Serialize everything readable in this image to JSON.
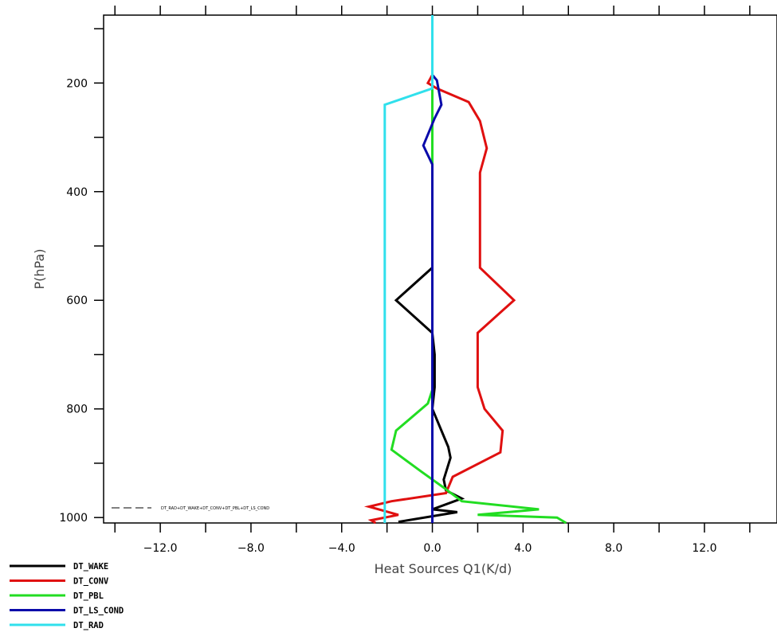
{
  "chart_data": {
    "type": "line",
    "xlabel": "Heat Sources Q1(K/d)",
    "ylabel": "P(hPa)",
    "xlim": [
      -14.5,
      15.2
    ],
    "ylim": [
      1010,
      75
    ],
    "x_ticks": [
      -12.0,
      -8.0,
      -4.0,
      0.0,
      4.0,
      8.0,
      12.0
    ],
    "x_tick_labels": [
      "−12.0",
      "−8.0",
      "−4.0",
      "0.0",
      "4.0",
      "8.0",
      "12.0"
    ],
    "x_minor_ticks": [
      -14,
      -10,
      -6,
      -2,
      2,
      6,
      10,
      14
    ],
    "y_ticks": [
      200,
      400,
      600,
      800,
      1000
    ],
    "y_tick_labels": [
      "200",
      "400",
      "600",
      "800",
      "1000"
    ],
    "y_minor_ticks": [
      100,
      300,
      500,
      700,
      900
    ],
    "legend_position": "bottom-left, below plot",
    "inline_label": "DT_RAD+DT_WAKE+DT_CONV+DT_PBL+DT_LS_COND",
    "series": [
      {
        "name": "DT_WAKE",
        "color": "#000000",
        "points": [
          [
            0,
            75
          ],
          [
            0,
            540
          ],
          [
            -1.6,
            600
          ],
          [
            0,
            660
          ],
          [
            0.1,
            700
          ],
          [
            0.1,
            760
          ],
          [
            0,
            800
          ],
          [
            0.7,
            870
          ],
          [
            0.8,
            890
          ],
          [
            0.5,
            930
          ],
          [
            0.6,
            950
          ],
          [
            1.3,
            965
          ],
          [
            0,
            985
          ],
          [
            1.1,
            990
          ],
          [
            -1.5,
            1008
          ]
        ]
      },
      {
        "name": "DT_CONV",
        "color": "#e01010",
        "points": [
          [
            0,
            75
          ],
          [
            0,
            185
          ],
          [
            -0.2,
            200
          ],
          [
            0.2,
            210
          ],
          [
            1.6,
            235
          ],
          [
            2.1,
            270
          ],
          [
            2.4,
            320
          ],
          [
            2.1,
            365
          ],
          [
            2.1,
            540
          ],
          [
            3.6,
            600
          ],
          [
            2.0,
            660
          ],
          [
            2.0,
            760
          ],
          [
            2.3,
            800
          ],
          [
            3.1,
            840
          ],
          [
            3.0,
            880
          ],
          [
            0.9,
            925
          ],
          [
            0.6,
            955
          ],
          [
            -1.8,
            970
          ],
          [
            -2.8,
            980
          ],
          [
            -1.5,
            995
          ],
          [
            -2.7,
            1005
          ],
          [
            -2.5,
            1010
          ]
        ]
      },
      {
        "name": "DT_PBL",
        "color": "#22dd22",
        "points": [
          [
            0,
            75
          ],
          [
            0,
            765
          ],
          [
            -0.2,
            790
          ],
          [
            -1.6,
            840
          ],
          [
            -1.8,
            875
          ],
          [
            -0.5,
            915
          ],
          [
            0.5,
            945
          ],
          [
            1.3,
            970
          ],
          [
            4.7,
            985
          ],
          [
            2.0,
            995
          ],
          [
            5.5,
            1000
          ],
          [
            5.9,
            1010
          ]
        ]
      },
      {
        "name": "DT_LS_COND",
        "color": "#0a0aaa",
        "points": [
          [
            0,
            75
          ],
          [
            0,
            185
          ],
          [
            0.2,
            195
          ],
          [
            0.4,
            240
          ],
          [
            0.1,
            265
          ],
          [
            -0.4,
            315
          ],
          [
            0,
            350
          ],
          [
            0,
            1010
          ]
        ]
      },
      {
        "name": "DT_RAD",
        "color": "#30e0ec",
        "points": [
          [
            0,
            75
          ],
          [
            0,
            210
          ],
          [
            -2.1,
            240
          ],
          [
            -2.1,
            1010
          ]
        ]
      }
    ]
  }
}
